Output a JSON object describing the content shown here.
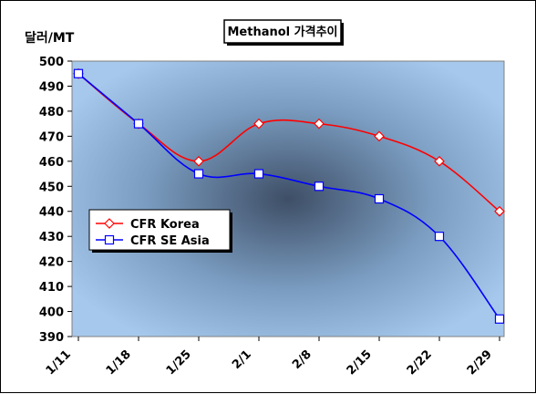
{
  "chart_data": {
    "type": "line",
    "title": "Methanol 가격추이",
    "ylabel": "달러/MT",
    "xlabel": "",
    "categories": [
      "1/11",
      "1/18",
      "1/25",
      "2/1",
      "2/8",
      "2/15",
      "2/22",
      "2/29"
    ],
    "ylim": [
      390,
      500
    ],
    "yticks": [
      390,
      400,
      410,
      420,
      430,
      440,
      450,
      460,
      470,
      480,
      490,
      500
    ],
    "series": [
      {
        "name": "CFR Korea",
        "color": "#FF0000",
        "marker": "diamond",
        "values": [
          495,
          475,
          460,
          475,
          475,
          470,
          460,
          440
        ]
      },
      {
        "name": "CFR SE Asia",
        "color": "#0000FF",
        "marker": "square",
        "values": [
          495,
          475,
          455,
          455,
          450,
          445,
          430,
          397
        ]
      }
    ],
    "legend_position": "center-left",
    "grid": false
  }
}
